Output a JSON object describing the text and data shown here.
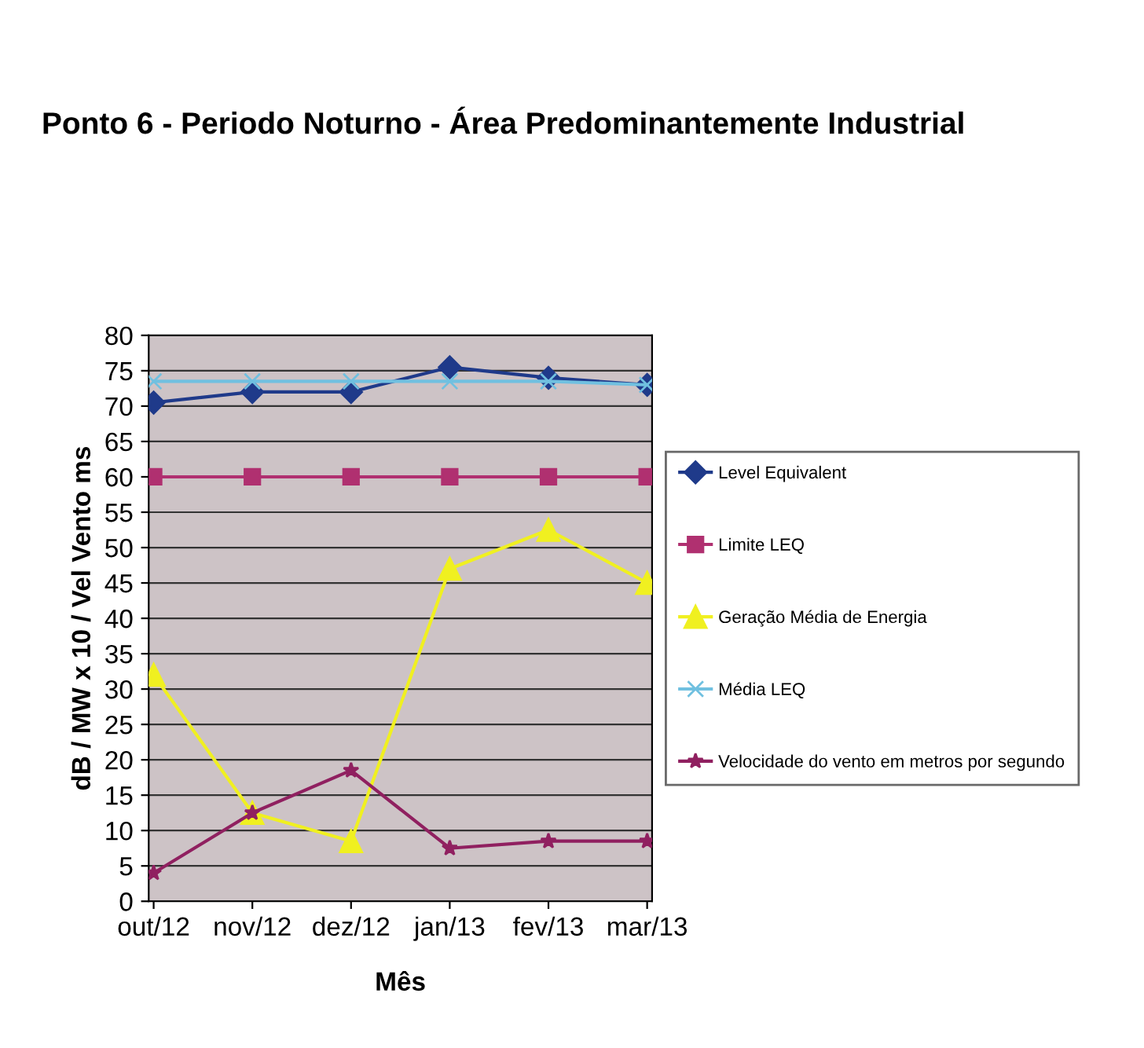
{
  "chart_data": {
    "type": "line",
    "title": "Ponto 6 - Periodo Noturno - Área Predominantemente Industrial",
    "xlabel": "Mês",
    "ylabel": "dB / MW x 10 / Vel Vento ms",
    "categories": [
      "out/12",
      "nov/12",
      "dez/12",
      "jan/13",
      "fev/13",
      "mar/13"
    ],
    "series": [
      {
        "name": "Level Equivalent",
        "color": "#1f3a8a",
        "marker": "diamond",
        "values": [
          70.5,
          72,
          72,
          75.5,
          74,
          73
        ]
      },
      {
        "name": "Limite LEQ",
        "color": "#b03070",
        "marker": "square",
        "values": [
          60,
          60,
          60,
          60,
          60,
          60
        ]
      },
      {
        "name": "Geração Média de Energia",
        "color": "#f0f020",
        "marker": "triangle",
        "values": [
          32,
          12.5,
          8.5,
          47,
          52.5,
          45
        ]
      },
      {
        "name": "Média LEQ",
        "color": "#70c0e0",
        "marker": "cross",
        "values": [
          73.5,
          73.5,
          73.5,
          73.5,
          73.5,
          73
        ]
      },
      {
        "name": "Velocidade do vento em metros por segundo",
        "color": "#902060",
        "marker": "star",
        "values": [
          4,
          12.5,
          18.5,
          7.5,
          8.5,
          8.5
        ]
      }
    ],
    "ylim": [
      0,
      80
    ],
    "yticks": [
      0,
      5,
      10,
      15,
      20,
      25,
      30,
      35,
      40,
      45,
      50,
      55,
      60,
      65,
      70,
      75,
      80
    ],
    "grid": "y",
    "legend": "right"
  }
}
